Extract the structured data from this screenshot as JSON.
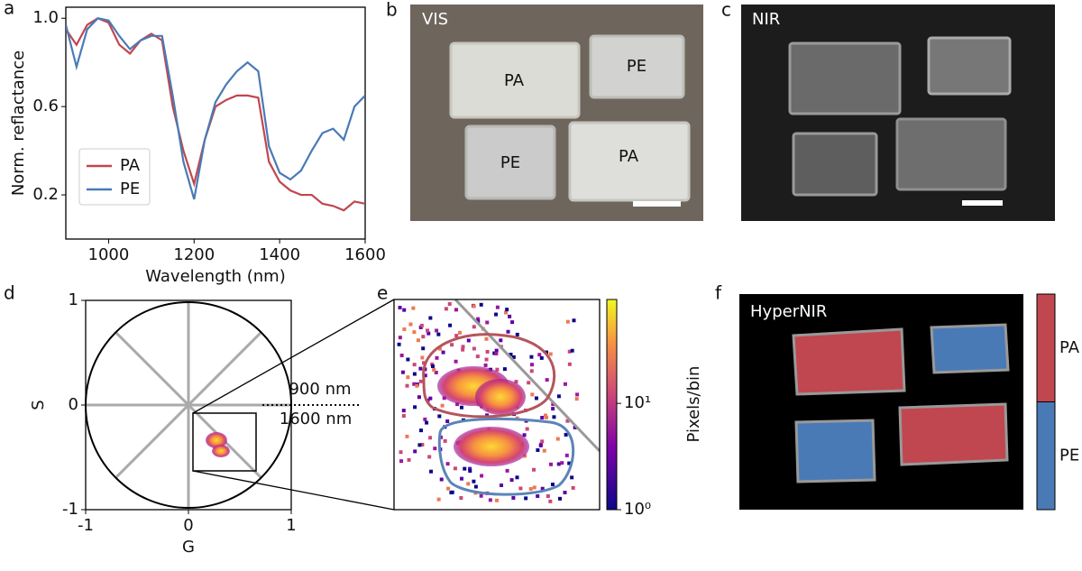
{
  "chart_data": [
    {
      "type": "line",
      "panel": "a",
      "xlabel": "Wavelength (nm)",
      "ylabel": "Norm. reflactance",
      "x": [
        900,
        925,
        950,
        975,
        1000,
        1025,
        1050,
        1075,
        1100,
        1125,
        1150,
        1175,
        1200,
        1225,
        1250,
        1275,
        1300,
        1325,
        1350,
        1375,
        1400,
        1425,
        1450,
        1475,
        1500,
        1525,
        1550,
        1575,
        1600
      ],
      "series": [
        {
          "name": "PA",
          "color": "#c0474f",
          "values": [
            0.95,
            0.88,
            0.97,
            1.0,
            0.98,
            0.88,
            0.84,
            0.9,
            0.93,
            0.9,
            0.6,
            0.4,
            0.25,
            0.45,
            0.6,
            0.63,
            0.65,
            0.65,
            0.64,
            0.35,
            0.26,
            0.22,
            0.2,
            0.2,
            0.16,
            0.15,
            0.13,
            0.17,
            0.16
          ]
        },
        {
          "name": "PE",
          "color": "#4a7ab5",
          "values": [
            0.97,
            0.78,
            0.95,
            1.0,
            0.99,
            0.92,
            0.86,
            0.9,
            0.92,
            0.92,
            0.65,
            0.35,
            0.18,
            0.45,
            0.62,
            0.7,
            0.76,
            0.8,
            0.76,
            0.42,
            0.3,
            0.27,
            0.31,
            0.4,
            0.48,
            0.5,
            0.45,
            0.6,
            0.65
          ]
        }
      ],
      "xlim": [
        900,
        1600
      ],
      "xticks": [
        1000,
        1200,
        1400,
        1600
      ],
      "ylim": [
        0,
        1.05
      ],
      "yticks": [
        0.2,
        0.6,
        {
          "value": 1,
          "label": "1.0"
        }
      ],
      "legend": "lower left"
    },
    {
      "type": "image",
      "panel": "b",
      "title": "VIS",
      "labels": [
        "PA",
        "PE",
        "PE",
        "PA"
      ]
    },
    {
      "type": "image",
      "panel": "c",
      "title": "NIR"
    },
    {
      "type": "phasor",
      "panel": "d",
      "xlabel": "G",
      "ylabel": "S",
      "xlim": [
        -1,
        1
      ],
      "ylim": [
        -1,
        1
      ],
      "xticks": [
        -1,
        0,
        1
      ],
      "yticks": [
        -1,
        0,
        1
      ],
      "annotations": [
        "900 nm",
        "1600 nm"
      ]
    },
    {
      "type": "heatmap",
      "panel": "e",
      "colorbar_label": "Pixels/bin",
      "log_scale": true,
      "clim": [
        1,
        95
      ],
      "cticks": [
        {
          "value": 1,
          "label": "10⁰"
        },
        {
          "value": 10,
          "label": "10¹"
        }
      ]
    },
    {
      "type": "classification",
      "panel": "f",
      "title": "HyperNIR",
      "categories": [
        "PA",
        "PE"
      ],
      "colors": [
        "#c0474f",
        "#4a7ab5"
      ]
    }
  ]
}
